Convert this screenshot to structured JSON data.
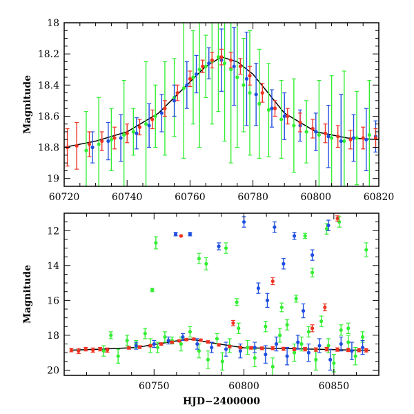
{
  "chart_data": [
    {
      "type": "scatter",
      "title": "",
      "xlabel": "",
      "ylabel": "Magnitude",
      "xlim": [
        60720,
        60820
      ],
      "ylim": [
        19.05,
        18.0
      ],
      "y_inverted": true,
      "x_ticks": [
        60720,
        60740,
        60760,
        60780,
        60800,
        60820
      ],
      "y_ticks": [
        18,
        18.2,
        18.4,
        18.6,
        18.8,
        19
      ],
      "y_tick_labels": [
        "18",
        "18.2",
        "18.4",
        "18.6",
        "18.8",
        "19"
      ],
      "grid": false,
      "legend": "none",
      "model_curve": {
        "color": "#000000",
        "x": [
          60720,
          60730,
          60740,
          60750,
          60760,
          60765,
          60770,
          60775,
          60780,
          60790,
          60800,
          60810,
          60820
        ],
        "y": [
          18.8,
          18.76,
          18.7,
          18.58,
          18.38,
          18.28,
          18.22,
          18.25,
          18.33,
          18.58,
          18.7,
          18.74,
          18.75
        ]
      },
      "series": [
        {
          "color": "#33ee33",
          "x": [
            60727,
            60731,
            60735,
            60739,
            60742,
            60746,
            60749,
            60752,
            60755,
            60758,
            60761,
            60763,
            60765,
            60767,
            60769,
            60771,
            60773,
            60775,
            60777,
            60779,
            60782,
            60785,
            60789,
            60793,
            60797,
            60801,
            60805,
            60809,
            60813,
            60817
          ],
          "y": [
            18.82,
            18.78,
            18.75,
            18.72,
            18.7,
            18.65,
            18.6,
            18.55,
            18.48,
            18.42,
            18.35,
            18.3,
            18.28,
            18.25,
            18.22,
            18.26,
            18.3,
            18.35,
            18.4,
            18.45,
            18.52,
            18.56,
            18.62,
            18.66,
            18.7,
            18.72,
            18.74,
            18.76,
            18.74,
            18.72
          ],
          "err": [
            0.25,
            0.3,
            0.2,
            0.35,
            0.15,
            0.4,
            0.2,
            0.3,
            0.25,
            0.45,
            0.3,
            0.5,
            0.2,
            0.4,
            0.35,
            0.5,
            0.6,
            0.45,
            0.3,
            0.4,
            0.35,
            0.3,
            0.25,
            0.3,
            0.2,
            0.35,
            0.4,
            0.45,
            0.3,
            0.35
          ]
        },
        {
          "color": "#1f4fe0",
          "x": [
            60729,
            60734,
            60738,
            60743,
            60747,
            60751,
            60755,
            60759,
            60762,
            60766,
            60770,
            60774,
            60778,
            60781,
            60786,
            60790,
            60795,
            60800,
            60804,
            60808,
            60812,
            60816,
            60819
          ],
          "y": [
            18.8,
            18.76,
            18.74,
            18.71,
            18.66,
            18.58,
            18.5,
            18.4,
            18.33,
            18.26,
            18.24,
            18.28,
            18.36,
            18.46,
            18.55,
            18.6,
            18.66,
            18.7,
            18.73,
            18.76,
            18.74,
            18.75,
            18.73
          ],
          "err": [
            0.1,
            0.12,
            0.15,
            0.1,
            0.14,
            0.12,
            0.1,
            0.15,
            0.12,
            0.1,
            0.2,
            0.25,
            0.3,
            0.2,
            0.12,
            0.15,
            0.1,
            0.12,
            0.2,
            0.3,
            0.15,
            0.2,
            0.1
          ]
        },
        {
          "color": "#ee3322",
          "x": [
            60721,
            60724,
            60728,
            60732,
            60736,
            60740,
            60744,
            60748,
            60752,
            60756,
            60760,
            60764,
            60767,
            60770,
            60773,
            60776,
            60779,
            60783,
            60787,
            60791,
            60795,
            60799,
            60803,
            60807,
            60811,
            60815,
            60819
          ],
          "y": [
            18.8,
            18.79,
            18.78,
            18.76,
            18.74,
            18.71,
            18.67,
            18.62,
            18.55,
            18.45,
            18.36,
            18.28,
            18.24,
            18.22,
            18.24,
            18.28,
            18.34,
            18.45,
            18.55,
            18.6,
            18.64,
            18.68,
            18.71,
            18.73,
            18.75,
            18.74,
            18.74
          ],
          "err": [
            0.12,
            0.15,
            0.08,
            0.06,
            0.07,
            0.06,
            0.05,
            0.06,
            0.05,
            0.05,
            0.05,
            0.04,
            0.05,
            0.05,
            0.05,
            0.05,
            0.06,
            0.06,
            0.05,
            0.05,
            0.06,
            0.06,
            0.06,
            0.07,
            0.06,
            0.07,
            0.06
          ]
        }
      ]
    },
    {
      "type": "scatter",
      "title": "",
      "xlabel": "HJD−2400000",
      "ylabel": "Magnitude",
      "xlim": [
        60700,
        60875
      ],
      "ylim": [
        20.3,
        11.0
      ],
      "y_inverted": true,
      "x_ticks": [
        60750,
        60800,
        60850
      ],
      "y_ticks": [
        12,
        14,
        16,
        18,
        20
      ],
      "y_tick_labels": [
        "12",
        "14",
        "16",
        "18",
        "20"
      ],
      "grid": false,
      "legend": "none",
      "model_curve": {
        "color": "#000000",
        "x": [
          60705,
          60720,
          60740,
          60755,
          60765,
          60770,
          60780,
          60800,
          60820,
          60840,
          60860,
          60870
        ],
        "y": [
          18.85,
          18.8,
          18.7,
          18.45,
          18.28,
          18.22,
          18.4,
          18.72,
          18.75,
          18.8,
          18.85,
          18.86
        ]
      },
      "series": [
        {
          "color": "#33ee33",
          "x": [
            60722,
            60726,
            60730,
            60735,
            60740,
            60745,
            60748,
            60752,
            60756,
            60760,
            60765,
            60770,
            60775,
            60780,
            60785,
            60788,
            60792,
            60797,
            60802,
            60806,
            60812,
            60816,
            60820,
            60824,
            60828,
            60832,
            60836,
            60840,
            60843,
            60847,
            60850,
            60854,
            60858,
            60862,
            60866,
            60749,
            60751,
            60775,
            60779,
            60790,
            60796,
            60821,
            60829,
            60834,
            60838,
            60846,
            60853,
            60858,
            60868
          ],
          "y": [
            18.9,
            18.0,
            19.2,
            18.3,
            18.5,
            17.9,
            18.6,
            18.7,
            18.1,
            18.3,
            18.5,
            17.8,
            18.9,
            19.4,
            18.2,
            19.5,
            18.6,
            17.6,
            18.7,
            19.3,
            17.5,
            19.8,
            18.0,
            17.4,
            19.0,
            18.5,
            17.8,
            19.4,
            17.2,
            18.6,
            19.6,
            17.7,
            18.4,
            19.2,
            18.1,
            15.4,
            12.7,
            13.6,
            13.9,
            13.0,
            16.1,
            16.4,
            15.9,
            12.3,
            14.4,
            11.9,
            11.5,
            17.6,
            13.1
          ],
          "err": [
            0.3,
            0.2,
            0.4,
            0.3,
            0.2,
            0.3,
            0.4,
            0.3,
            0.3,
            0.2,
            0.4,
            0.3,
            0.4,
            0.5,
            0.3,
            0.5,
            0.4,
            0.3,
            0.4,
            0.5,
            0.3,
            0.5,
            0.4,
            0.3,
            0.5,
            0.4,
            0.3,
            0.6,
            0.3,
            0.4,
            0.5,
            0.3,
            0.4,
            0.5,
            0.3,
            0.1,
            0.35,
            0.3,
            0.35,
            0.3,
            0.2,
            0.25,
            0.2,
            0.15,
            0.25,
            0.3,
            0.3,
            0.3,
            0.4
          ]
        },
        {
          "color": "#1f4fe0",
          "x": [
            60740,
            60750,
            60758,
            60766,
            60774,
            60782,
            60790,
            60798,
            60806,
            60812,
            60818,
            60824,
            60830,
            60836,
            60842,
            60848,
            60854,
            60860,
            60866,
            60762,
            60770,
            60786,
            60800,
            60808,
            60813,
            60817,
            60822,
            60828,
            60833,
            60838,
            60847
          ],
          "y": [
            18.6,
            18.5,
            18.3,
            18.1,
            18.5,
            18.7,
            18.8,
            18.9,
            18.7,
            19.1,
            18.5,
            19.2,
            18.4,
            19.0,
            18.6,
            19.4,
            18.5,
            18.9,
            18.7,
            12.2,
            12.2,
            12.9,
            11.5,
            15.3,
            16.0,
            11.8,
            13.9,
            12.3,
            16.6,
            13.4,
            11.7
          ],
          "err": [
            0.2,
            0.2,
            0.2,
            0.2,
            0.3,
            0.3,
            0.4,
            0.4,
            0.3,
            0.5,
            0.4,
            0.5,
            0.4,
            0.5,
            0.4,
            0.6,
            0.4,
            0.5,
            0.4,
            0.1,
            0.1,
            0.2,
            0.3,
            0.3,
            0.4,
            0.3,
            0.3,
            0.2,
            0.4,
            0.3,
            0.3
          ]
        },
        {
          "color": "#ee3322",
          "x": [
            60704,
            60708,
            60712,
            60716,
            60720,
            60724,
            60736,
            60742,
            60748,
            60754,
            60760,
            60764,
            60768,
            60772,
            60776,
            60780,
            60786,
            60792,
            60798,
            60804,
            60810,
            60816,
            60822,
            60828,
            60834,
            60840,
            60846,
            60852,
            60858,
            60864,
            60868,
            60765,
            60794,
            60816,
            60838,
            60845,
            60852
          ],
          "y": [
            18.85,
            18.9,
            18.8,
            18.85,
            18.8,
            18.85,
            18.72,
            18.68,
            18.6,
            18.5,
            18.4,
            18.32,
            18.25,
            18.22,
            18.28,
            18.38,
            18.55,
            18.65,
            18.7,
            18.72,
            18.75,
            18.74,
            18.78,
            18.8,
            18.8,
            18.82,
            18.8,
            18.82,
            18.84,
            18.85,
            18.86,
            12.3,
            17.3,
            14.9,
            17.6,
            16.4,
            11.3
          ],
          "err": [
            0.1,
            0.15,
            0.1,
            0.12,
            0.1,
            0.12,
            0.08,
            0.08,
            0.07,
            0.07,
            0.06,
            0.06,
            0.06,
            0.06,
            0.06,
            0.07,
            0.07,
            0.07,
            0.08,
            0.08,
            0.08,
            0.09,
            0.09,
            0.09,
            0.1,
            0.1,
            0.1,
            0.1,
            0.1,
            0.1,
            0.1,
            0.05,
            0.15,
            0.2,
            0.2,
            0.2,
            0.15
          ]
        }
      ]
    }
  ]
}
